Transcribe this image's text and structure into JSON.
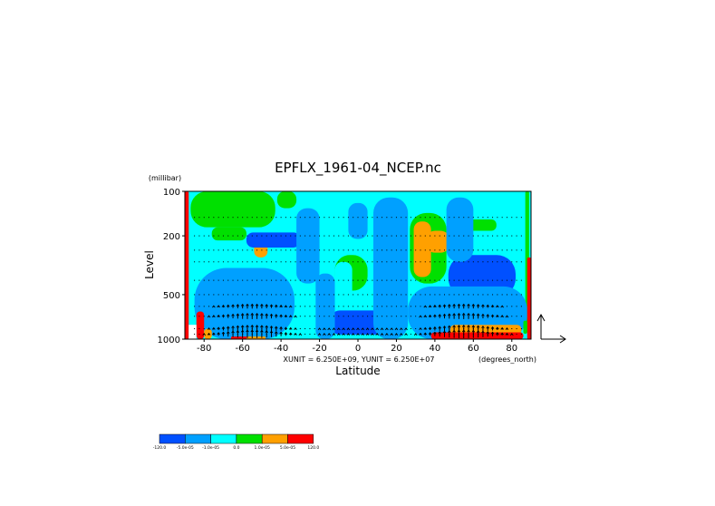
{
  "chart_data": {
    "type": "heatmap",
    "title": "EPFLX_1961-04_NCEP.nc",
    "xlabel": "Latitude",
    "x_units": "(degrees_north)",
    "ylabel": "Level",
    "y_units": "(millibar)",
    "x_ticks": [
      -80,
      -60,
      -40,
      -20,
      0,
      20,
      40,
      60,
      80
    ],
    "y_ticks": [
      100,
      200,
      500,
      1000
    ],
    "xlim": [
      -90,
      90
    ],
    "ylim": [
      1000,
      100
    ],
    "y_scale": "log",
    "unit_note": "XUNIT = 6.250E+09, YUNIT = 6.250E+07",
    "colorbar": {
      "colors": [
        "#0050ff",
        "#00a0ff",
        "#00ffff",
        "#00e000",
        "#ffa000",
        "#ff0000"
      ],
      "labels": [
        "-120.0",
        "-5.0e-05",
        "-1.0e-05",
        "0.0",
        "1.0e-05",
        "5.0e-05",
        "120.0"
      ]
    },
    "levels_mb": [
      100,
      150,
      200,
      250,
      300,
      400,
      500,
      600,
      700,
      850,
      925,
      1000
    ],
    "regions": [
      {
        "color": "#00ffff",
        "lat": [
          -90,
          90
        ],
        "p": [
          100,
          1000
        ]
      },
      {
        "color": "#00e000",
        "lat": [
          -87,
          -43
        ],
        "p": [
          100,
          175
        ]
      },
      {
        "color": "#00e000",
        "lat": [
          -76,
          -58
        ],
        "p": [
          175,
          215
        ]
      },
      {
        "color": "#00e000",
        "lat": [
          -42,
          -32
        ],
        "p": [
          100,
          130
        ]
      },
      {
        "color": "#00e000",
        "lat": [
          -12,
          5
        ],
        "p": [
          270,
          470
        ]
      },
      {
        "color": "#00e000",
        "lat": [
          27,
          46
        ],
        "p": [
          140,
          420
        ]
      },
      {
        "color": "#00e000",
        "lat": [
          55,
          72
        ],
        "p": [
          155,
          185
        ]
      },
      {
        "color": "#00e000",
        "lat": [
          87,
          89
        ],
        "p": [
          100,
          900
        ]
      },
      {
        "color": "#ffa000",
        "lat": [
          -54,
          -47
        ],
        "p": [
          210,
          280
        ]
      },
      {
        "color": "#ffa000",
        "lat": [
          29,
          38
        ],
        "p": [
          160,
          380
        ]
      },
      {
        "color": "#ffa000",
        "lat": [
          35,
          48
        ],
        "p": [
          185,
          260
        ]
      },
      {
        "color": "#0050ff",
        "lat": [
          -82,
          -40
        ],
        "p": [
          390,
          760
        ]
      },
      {
        "color": "#0050ff",
        "lat": [
          -80,
          -40
        ],
        "p": [
          720,
          930
        ]
      },
      {
        "color": "#0050ff",
        "lat": [
          -15,
          20
        ],
        "p": [
          640,
          930
        ]
      },
      {
        "color": "#0050ff",
        "lat": [
          47,
          82
        ],
        "p": [
          270,
          520
        ]
      },
      {
        "color": "#0050ff",
        "lat": [
          43,
          58
        ],
        "p": [
          520,
          730
        ]
      },
      {
        "color": "#0050ff",
        "lat": [
          -58,
          -30
        ],
        "p": [
          190,
          240
        ]
      },
      {
        "color": "#00a0ff",
        "lat": [
          -85,
          -33
        ],
        "p": [
          330,
          1000
        ]
      },
      {
        "color": "#00a0ff",
        "lat": [
          -32,
          -20
        ],
        "p": [
          130,
          420
        ]
      },
      {
        "color": "#00a0ff",
        "lat": [
          -22,
          -12
        ],
        "p": [
          360,
          1000
        ]
      },
      {
        "color": "#00a0ff",
        "lat": [
          8,
          26
        ],
        "p": [
          110,
          1000
        ]
      },
      {
        "color": "#00a0ff",
        "lat": [
          26,
          88
        ],
        "p": [
          440,
          1000
        ]
      },
      {
        "color": "#00a0ff",
        "lat": [
          46,
          60
        ],
        "p": [
          110,
          300
        ]
      },
      {
        "color": "#00a0ff",
        "lat": [
          -5,
          5
        ],
        "p": [
          120,
          210
        ]
      },
      {
        "color": "#00ffff",
        "lat": [
          -12,
          -3
        ],
        "p": [
          300,
          600
        ]
      },
      {
        "color": "#ffa000",
        "lat": [
          48,
          85
        ],
        "p": [
          800,
          930
        ]
      },
      {
        "color": "#ff0000",
        "lat": [
          38,
          86
        ],
        "p": [
          900,
          1000
        ]
      },
      {
        "color": "#ff0000",
        "lat": [
          -90,
          -88
        ],
        "p": [
          100,
          1000
        ]
      },
      {
        "color": "#ff0000",
        "lat": [
          88,
          90
        ],
        "p": [
          280,
          1000
        ]
      },
      {
        "color": "#00e000",
        "lat": [
          86,
          88
        ],
        "p": [
          750,
          920
        ]
      },
      {
        "color": "#ff0000",
        "lat": [
          -84,
          -80
        ],
        "p": [
          650,
          1000
        ]
      },
      {
        "color": "#ffa000",
        "lat": [
          -80,
          -76
        ],
        "p": [
          850,
          1000
        ]
      },
      {
        "color": "#ff0000",
        "lat": [
          -66,
          -56
        ],
        "p": [
          960,
          1000
        ]
      },
      {
        "color": "#ffa000",
        "lat": [
          -58,
          -48
        ],
        "p": [
          960,
          1000
        ]
      }
    ],
    "masked": [
      {
        "lat": [
          -88,
          -84
        ],
        "p": [
          800,
          1000
        ]
      }
    ]
  }
}
